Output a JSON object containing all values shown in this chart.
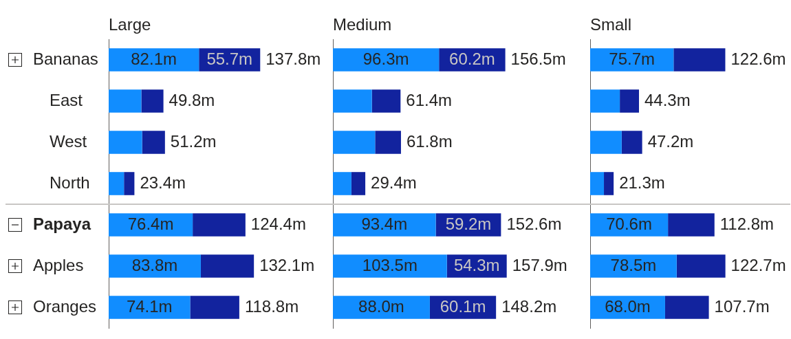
{
  "chart_data": [
    {
      "type": "bar",
      "orientation": "horizontal",
      "stacked": true,
      "title": "Large",
      "categories": [
        "Bananas",
        "East",
        "West",
        "North",
        "Papaya",
        "Apples",
        "Oranges"
      ],
      "series": [
        {
          "color": "#118dff",
          "values": [
            82.1,
            29.7,
            30.4,
            13.9,
            76.4,
            83.8,
            74.1
          ],
          "value_labels": [
            "82.1m",
            null,
            null,
            null,
            "76.4m",
            "83.8m",
            "74.1m"
          ]
        },
        {
          "color": "#12239e",
          "values": [
            55.7,
            20.1,
            20.8,
            9.5,
            48.0,
            48.3,
            44.7
          ],
          "value_labels": [
            "55.7m",
            null,
            null,
            null,
            null,
            null,
            null
          ]
        }
      ],
      "totals": [
        "137.8m",
        "49.8m",
        "51.2m",
        "23.4m",
        "124.4m",
        "132.1m",
        "118.8m"
      ],
      "tick_labels": "y"
    },
    {
      "type": "bar",
      "orientation": "horizontal",
      "stacked": true,
      "title": "Medium",
      "categories": [
        null,
        null,
        null,
        null,
        null,
        null,
        null
      ],
      "series": [
        {
          "color": "#118dff",
          "values": [
            96.3,
            35.4,
            38.3,
            16.8,
            93.4,
            103.5,
            88.0
          ],
          "value_labels": [
            "96.3m",
            null,
            null,
            null,
            "93.4m",
            "103.5m",
            "88.0m"
          ]
        },
        {
          "color": "#12239e",
          "values": [
            60.2,
            26.0,
            23.5,
            12.6,
            59.2,
            54.3,
            60.1
          ],
          "value_labels": [
            "60.2m",
            null,
            null,
            null,
            "59.2m",
            "54.3m",
            "60.1m"
          ]
        }
      ],
      "totals": [
        "156.5m",
        "61.4m",
        "61.8m",
        "29.4m",
        "152.6m",
        "157.9m",
        "148.2m"
      ],
      "tick_labels": false
    },
    {
      "type": "bar",
      "orientation": "horizontal",
      "stacked": true,
      "title": "Small",
      "categories": [
        null,
        null,
        null,
        null,
        null,
        null,
        null
      ],
      "series": [
        {
          "color": "#118dff",
          "values": [
            75.7,
            26.9,
            28.6,
            12.5,
            70.6,
            78.5,
            68.0
          ],
          "value_labels": [
            "75.7m",
            null,
            null,
            null,
            "70.6m",
            "78.5m",
            "68.0m"
          ]
        },
        {
          "color": "#12239e",
          "values": [
            46.9,
            17.4,
            18.6,
            8.8,
            42.2,
            44.2,
            39.7
          ]
        }
      ],
      "totals": [
        "122.6m",
        "44.3m",
        "47.2m",
        "21.3m",
        "112.8m",
        "122.7m",
        "107.7m"
      ],
      "tick_labels": false
    }
  ]
}
